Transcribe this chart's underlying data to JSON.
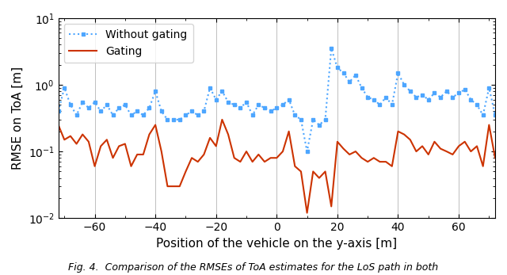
{
  "title": "",
  "xlabel": "Position of the vehicle on the y-axis [m]",
  "ylabel": "RMSE on ToA [m]",
  "xlim": [
    -72,
    72
  ],
  "ylim_log": [
    -2,
    1
  ],
  "legend_labels": [
    "Without gating",
    "Gating"
  ],
  "legend_colors": [
    "#4da6ff",
    "#cc3300"
  ],
  "line1_color": "#4da6ff",
  "line2_color": "#cc3300",
  "caption": "Fig. 4.  Comparison of the RMSEs of ToA estimates for the LoS path in both",
  "x": [
    -72,
    -70,
    -68,
    -66,
    -64,
    -62,
    -60,
    -58,
    -56,
    -54,
    -52,
    -50,
    -48,
    -46,
    -44,
    -42,
    -40,
    -38,
    -36,
    -34,
    -32,
    -30,
    -28,
    -26,
    -24,
    -22,
    -20,
    -18,
    -16,
    -14,
    -12,
    -10,
    -8,
    -6,
    -4,
    -2,
    0,
    2,
    4,
    6,
    8,
    10,
    12,
    14,
    16,
    18,
    20,
    22,
    24,
    26,
    28,
    30,
    32,
    34,
    36,
    38,
    40,
    42,
    44,
    46,
    48,
    50,
    52,
    54,
    56,
    58,
    60,
    62,
    64,
    66,
    68,
    70,
    72
  ],
  "y_no_gate": [
    0.4,
    0.9,
    0.5,
    0.35,
    0.55,
    0.45,
    0.55,
    0.4,
    0.5,
    0.35,
    0.45,
    0.5,
    0.35,
    0.4,
    0.35,
    0.45,
    0.8,
    0.4,
    0.3,
    0.3,
    0.3,
    0.35,
    0.4,
    0.35,
    0.4,
    0.9,
    0.6,
    0.8,
    0.55,
    0.5,
    0.45,
    0.55,
    0.35,
    0.5,
    0.45,
    0.4,
    0.45,
    0.5,
    0.6,
    0.35,
    0.3,
    0.1,
    0.3,
    0.25,
    0.3,
    3.5,
    1.8,
    1.5,
    1.1,
    1.4,
    0.9,
    0.65,
    0.6,
    0.5,
    0.65,
    0.5,
    1.5,
    1.0,
    0.8,
    0.65,
    0.7,
    0.6,
    0.75,
    0.65,
    0.8,
    0.65,
    0.75,
    0.85,
    0.6,
    0.5,
    0.35,
    0.9,
    0.35
  ],
  "y_gate": [
    0.25,
    0.15,
    0.17,
    0.13,
    0.18,
    0.14,
    0.06,
    0.12,
    0.15,
    0.08,
    0.12,
    0.13,
    0.06,
    0.09,
    0.09,
    0.18,
    0.25,
    0.1,
    0.03,
    0.03,
    0.03,
    0.05,
    0.08,
    0.07,
    0.09,
    0.16,
    0.12,
    0.3,
    0.18,
    0.08,
    0.07,
    0.1,
    0.07,
    0.09,
    0.07,
    0.08,
    0.08,
    0.1,
    0.2,
    0.06,
    0.05,
    0.012,
    0.05,
    0.04,
    0.05,
    0.015,
    0.14,
    0.11,
    0.09,
    0.1,
    0.08,
    0.07,
    0.08,
    0.07,
    0.07,
    0.06,
    0.2,
    0.18,
    0.15,
    0.1,
    0.12,
    0.09,
    0.14,
    0.11,
    0.1,
    0.09,
    0.12,
    0.14,
    0.1,
    0.12,
    0.06,
    0.25,
    0.08
  ]
}
